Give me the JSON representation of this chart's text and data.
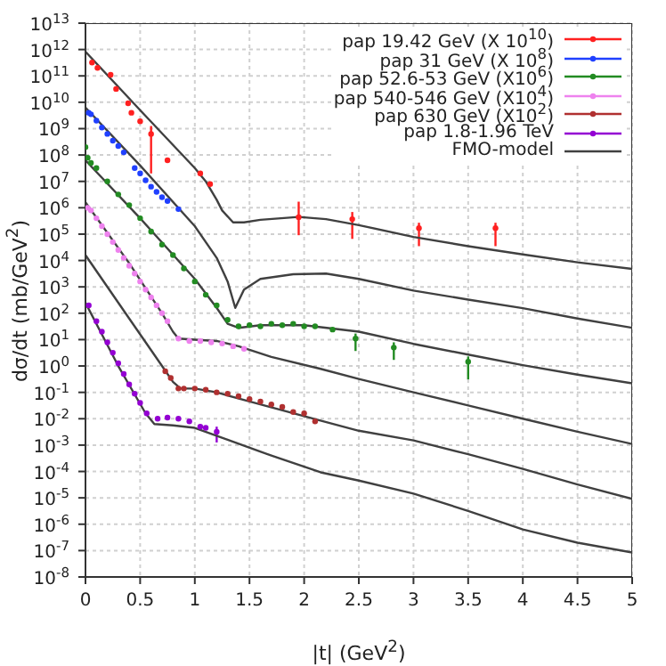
{
  "chart_data": {
    "type": "scatter",
    "xlabel": "|t| (GeV$^{2}$)",
    "ylabel": "dσ/dt (mb/GeV$^{2}$)",
    "log": "y",
    "grid": true,
    "legend": "top right",
    "marker": "circle",
    "xlim": [
      0,
      5
    ],
    "xticks": [
      0,
      0.5,
      1,
      1.5,
      2,
      2.5,
      3,
      3.5,
      4,
      4.5,
      5
    ],
    "ylim": [
      1e-08,
      10000000000000.0
    ],
    "yticks": [
      {
        "value": 1e-08,
        "label": "10$^{-8}$"
      },
      {
        "value": 1e-07,
        "label": "10$^{-7}$"
      },
      {
        "value": 1e-06,
        "label": "10$^{-6}$"
      },
      {
        "value": 1e-05,
        "label": "10$^{-5}$"
      },
      {
        "value": 0.0001,
        "label": "10$^{-4}$"
      },
      {
        "value": 0.001,
        "label": "10$^{-3}$"
      },
      {
        "value": 0.01,
        "label": "10$^{-2}$"
      },
      {
        "value": 0.1,
        "label": "10$^{-1}$"
      },
      {
        "value": 1,
        "label": "10$^{0}$"
      },
      {
        "value": 10,
        "label": "10$^{1}$"
      },
      {
        "value": 100,
        "label": "10$^{2}$"
      },
      {
        "value": 1000.0,
        "label": "10$^{3}$"
      },
      {
        "value": 10000.0,
        "label": "10$^{4}$"
      },
      {
        "value": 100000.0,
        "label": "10$^{5}$"
      },
      {
        "value": 1000000.0,
        "label": "10$^{6}$"
      },
      {
        "value": 10000000.0,
        "label": "10$^{7}$"
      },
      {
        "value": 100000000.0,
        "label": "10$^{8}$"
      },
      {
        "value": 1000000000.0,
        "label": "10$^{9}$"
      },
      {
        "value": 10000000000.0,
        "label": "10$^{10}$"
      },
      {
        "value": 100000000000.0,
        "label": "10$^{11}$"
      },
      {
        "value": 1000000000000.0,
        "label": "10$^{12}$"
      },
      {
        "value": 10000000000000.0,
        "label": "10$^{13}$"
      }
    ],
    "series": [
      {
        "name": "pap 19.42 GeV (X 10$^{10}$)",
        "color": "#ff2020",
        "x": [
          0.06,
          0.11,
          0.23,
          0.28,
          0.39,
          0.42,
          0.5,
          0.6,
          0.75,
          1.05,
          1.14,
          1.95,
          2.44,
          3.05,
          3.75
        ],
        "values": [
          320000000000.0,
          200000000000.0,
          110000000000.0,
          32000000000.0,
          9100000000.0,
          4000000000.0,
          1900000000.0,
          630000000.0,
          63000000.0,
          20000000.0,
          7900000.0,
          440000.0,
          370000.0,
          170000.0,
          170000.0
        ],
        "errors": [
          null,
          null,
          null,
          null,
          null,
          null,
          null,
          [
            20000000.0,
            1260000000.0
          ],
          null,
          null,
          null,
          [
            91000.0,
            1700000.0
          ],
          [
            66000.0,
            690000.0
          ],
          [
            35000.0,
            270000.0
          ],
          [
            35000.0,
            270000.0
          ]
        ]
      },
      {
        "name": "pap 31 GeV (X 10$^{8}$)",
        "color": "#2040ff",
        "x": [
          0.03,
          0.05,
          0.1,
          0.15,
          0.2,
          0.25,
          0.3,
          0.35,
          0.45,
          0.5,
          0.55,
          0.6,
          0.65,
          0.7,
          0.75,
          0.85
        ],
        "values": [
          4000000000.0,
          3500000000.0,
          2000000000.0,
          1100000000.0,
          630000000.0,
          350000000.0,
          220000000.0,
          126000000.0,
          32000000.0,
          20000000.0,
          11000000.0,
          6300000.0,
          4000000.0,
          2500000.0,
          1800000.0,
          890000.0
        ]
      },
      {
        "name": "pap 52.6-53 GeV (X10$^{6}$)",
        "color": "#228b22",
        "x": [
          0,
          0.02,
          0.05,
          0.1,
          0.2,
          0.3,
          0.4,
          0.5,
          0.6,
          0.7,
          0.8,
          0.9,
          1.0,
          1.1,
          1.2,
          1.3,
          1.4,
          1.5,
          1.6,
          1.7,
          1.8,
          1.9,
          2.0,
          2.1,
          2.26,
          2.47,
          2.82,
          3.5
        ],
        "values": [
          200000000.0,
          79000000.0,
          50000000.0,
          32000000.0,
          10000000.0,
          3200000.0,
          1260000.0,
          400000.0,
          126000.0,
          40000.0,
          16000.0,
          5000.0,
          1600.0,
          500,
          200,
          56,
          32,
          35,
          32,
          40,
          35,
          40,
          32,
          32,
          24,
          11,
          5,
          1.45
        ],
        "errors": [
          null,
          null,
          null,
          null,
          null,
          null,
          null,
          null,
          null,
          null,
          null,
          null,
          null,
          null,
          null,
          null,
          null,
          null,
          null,
          null,
          null,
          null,
          null,
          null,
          null,
          [
            3.7,
            17
          ],
          [
            1.7,
            7.9
          ],
          [
            0.31,
            2.3
          ]
        ]
      },
      {
        "name": "pap 540-546 GeV (X10$^{4}$)",
        "color": "#ee82ee",
        "x": [
          0.02,
          0.05,
          0.1,
          0.15,
          0.2,
          0.25,
          0.3,
          0.35,
          0.4,
          0.45,
          0.5,
          0.55,
          0.6,
          0.65,
          0.7,
          0.75,
          0.85,
          0.95,
          1.05,
          1.15,
          1.25,
          1.35,
          1.45
        ],
        "values": [
          1000000.0,
          790000.0,
          400000.0,
          200000.0,
          100000.0,
          50000.0,
          25000.0,
          12600.0,
          6300.0,
          3200.0,
          1600.0,
          790,
          400,
          200,
          100,
          50,
          11,
          8.9,
          8.9,
          7.9,
          7.1,
          5.6,
          4.5
        ]
      },
      {
        "name": "pap 630 GeV (X10$^{2}$)",
        "color": "#b03030",
        "x": [
          0.73,
          0.78,
          0.85,
          0.9,
          1.0,
          1.1,
          1.2,
          1.3,
          1.4,
          1.5,
          1.6,
          1.7,
          1.8,
          1.9,
          2.0,
          2.1
        ],
        "values": [
          0.63,
          0.35,
          0.14,
          0.14,
          0.14,
          0.126,
          0.1,
          0.089,
          0.071,
          0.056,
          0.045,
          0.035,
          0.028,
          0.018,
          0.016,
          0.0079
        ]
      },
      {
        "name": "pap 1.8-1.96 TeV",
        "color": "#9400d3",
        "x": [
          0.03,
          0.1,
          0.15,
          0.2,
          0.25,
          0.3,
          0.35,
          0.4,
          0.45,
          0.5,
          0.56,
          0.66,
          0.75,
          0.85,
          0.95,
          1.05,
          1.1,
          1.2
        ],
        "values": [
          200,
          50,
          20,
          7.9,
          3.2,
          1.26,
          0.5,
          0.2,
          0.089,
          0.04,
          0.016,
          0.01,
          0.011,
          0.01,
          0.0079,
          0.005,
          0.0045,
          0.0032
        ],
        "errors": [
          null,
          null,
          null,
          null,
          null,
          null,
          null,
          null,
          null,
          null,
          null,
          null,
          null,
          null,
          null,
          null,
          null,
          [
            0.00126,
            0.005
          ]
        ]
      },
      {
        "name": "FMO-model",
        "type": "line",
        "marker": "none",
        "color": "#404040",
        "x": [
          0,
          0.5,
          1.0,
          1.1,
          1.2,
          1.25,
          1.35,
          1.45,
          1.6,
          1.95,
          2.2,
          2.5,
          3,
          3.5,
          4,
          4.5,
          5
        ],
        "values": [
          830000000000.0,
          5000000000.0,
          32000000.0,
          10000000.0,
          2000000.0,
          790000.0,
          280000.0,
          280000.0,
          350000.0,
          450000.0,
          370000.0,
          220000.0,
          78000.0,
          35000.0,
          17000.0,
          8500.0,
          4800.0
        ]
      },
      {
        "type": "line",
        "marker": "none",
        "color": "#404040",
        "x": [
          0,
          0.5,
          1.0,
          1.2,
          1.3,
          1.37,
          1.45,
          1.6,
          1.9,
          2.2,
          2.5,
          3,
          3.5,
          4,
          4.5,
          5
        ],
        "values": [
          6300000000.0,
          40000000.0,
          200000.0,
          12600.0,
          1600.0,
          160,
          790,
          2000.0,
          3000.0,
          3200.0,
          2000.0,
          720,
          330,
          155,
          63,
          28
        ]
      },
      {
        "type": "line",
        "marker": "none",
        "color": "#404040",
        "x": [
          0,
          0.5,
          1.0,
          1.2,
          1.3,
          1.4,
          1.6,
          2.0,
          2.5,
          3,
          3.5,
          4,
          4.5,
          5
        ],
        "values": [
          63000000.0,
          400000.0,
          2000.0,
          160,
          40,
          28,
          35,
          35,
          20,
          6.9,
          2.7,
          1.07,
          0.47,
          0.22
        ]
      },
      {
        "type": "line",
        "marker": "none",
        "color": "#404040",
        "x": [
          0,
          0.4,
          0.7,
          0.8,
          0.85,
          1.0,
          1.2,
          1.4,
          1.7,
          2.15,
          2.5,
          3,
          3.5,
          4,
          4.5,
          5
        ],
        "values": [
          1600000.0,
          7900.0,
          100,
          20,
          11,
          10,
          8.9,
          5.6,
          2.2,
          0.78,
          0.32,
          0.1,
          0.032,
          0.01,
          0.0032,
          0.0011
        ]
      },
      {
        "type": "line",
        "marker": "none",
        "color": "#404040",
        "x": [
          0,
          0.4,
          0.7,
          0.8,
          0.87,
          1.0,
          1.2,
          1.5,
          2.15,
          2.5,
          3,
          3.5,
          4,
          4.5,
          5
        ],
        "values": [
          16000.0,
          63,
          1,
          0.25,
          0.14,
          0.14,
          0.1,
          0.045,
          0.0085,
          0.0035,
          0.0015,
          0.00045,
          0.000126,
          3.2e-05,
          9.1e-06
        ]
      },
      {
        "type": "line",
        "marker": "none",
        "color": "#404040",
        "x": [
          0,
          0.3,
          0.55,
          0.63,
          0.8,
          1.0,
          1.3,
          1.7,
          2.15,
          2.5,
          3,
          3.5,
          4,
          4.5,
          5
        ],
        "values": [
          250,
          1,
          0.016,
          0.0063,
          0.0056,
          0.0045,
          0.0016,
          0.0004,
          9.3e-05,
          4.5e-05,
          1.45e-05,
          3.2e-06,
          6.3e-07,
          2e-07,
          8.5e-08
        ]
      }
    ]
  }
}
